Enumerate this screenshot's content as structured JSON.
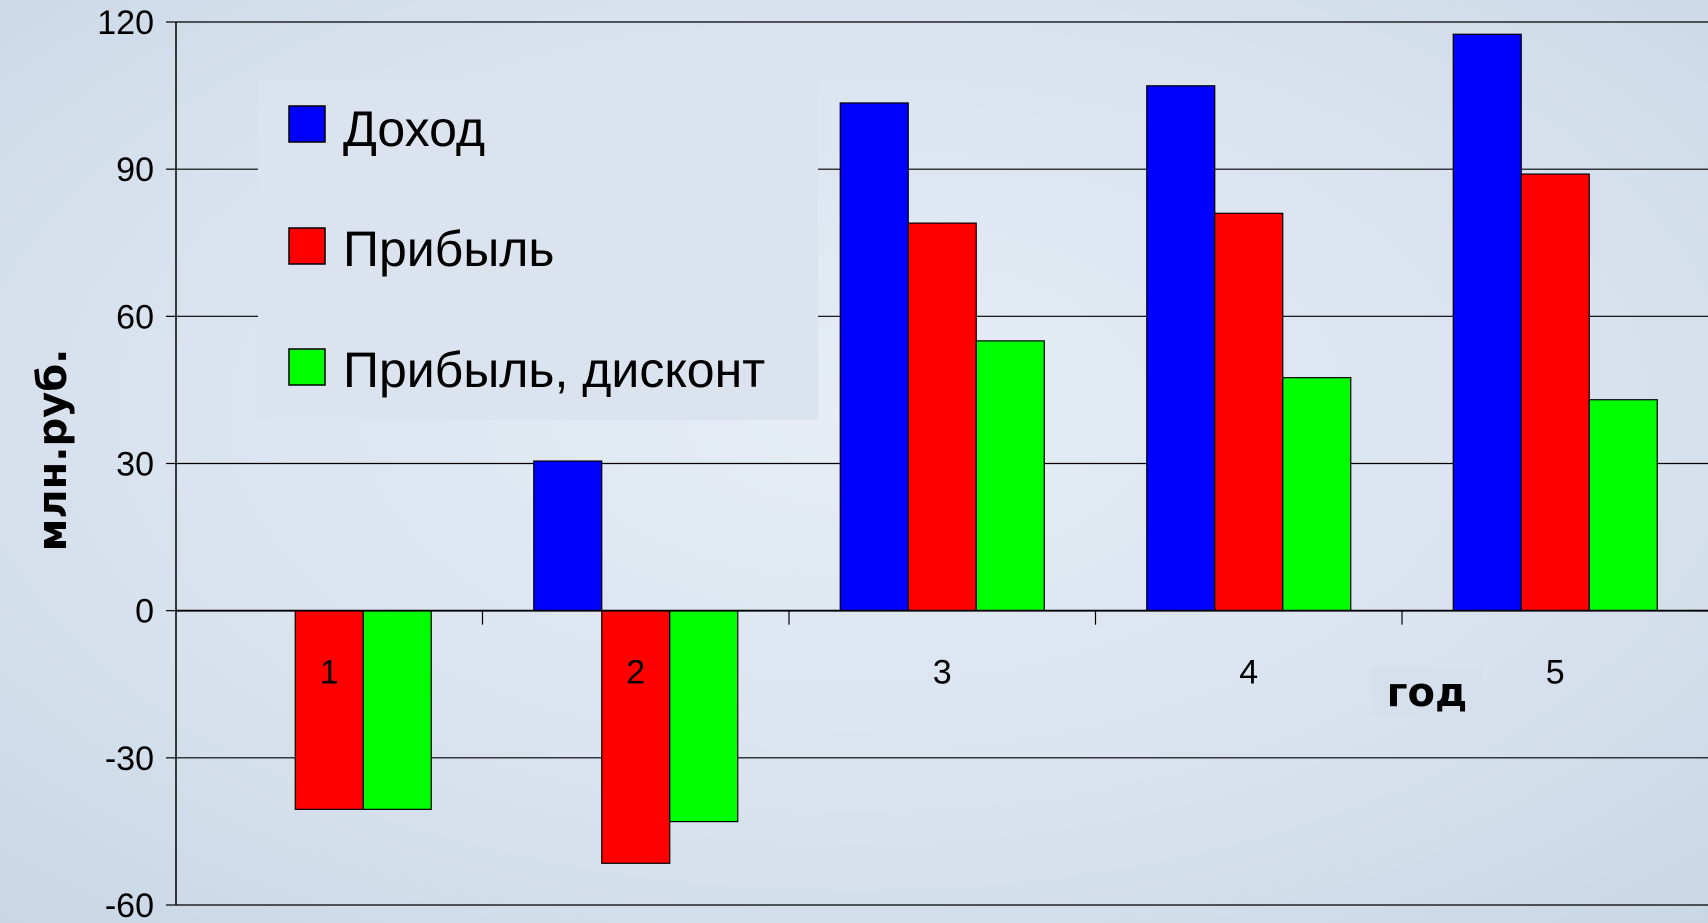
{
  "chart_data": {
    "type": "bar",
    "categories": [
      "1",
      "2",
      "3",
      "4",
      "5"
    ],
    "series": [
      {
        "name": "Доход",
        "color": "#0000ff",
        "values": [
          0,
          30.5,
          103.5,
          107,
          117.5
        ]
      },
      {
        "name": "Прибыль",
        "color": "#ff0000",
        "values": [
          -40.5,
          -51.5,
          79,
          81,
          89
        ]
      },
      {
        "name": "Прибыль, дисконт",
        "color": "#00ff00",
        "values": [
          -40.5,
          -43,
          55,
          47.5,
          43
        ]
      }
    ],
    "xlabel": "год",
    "ylabel": "млн.руб.",
    "ylim": [
      -60,
      120
    ],
    "yticks": [
      120,
      90,
      60,
      30,
      0,
      -30,
      -60
    ],
    "grid": true,
    "legend_position": "top-left"
  }
}
